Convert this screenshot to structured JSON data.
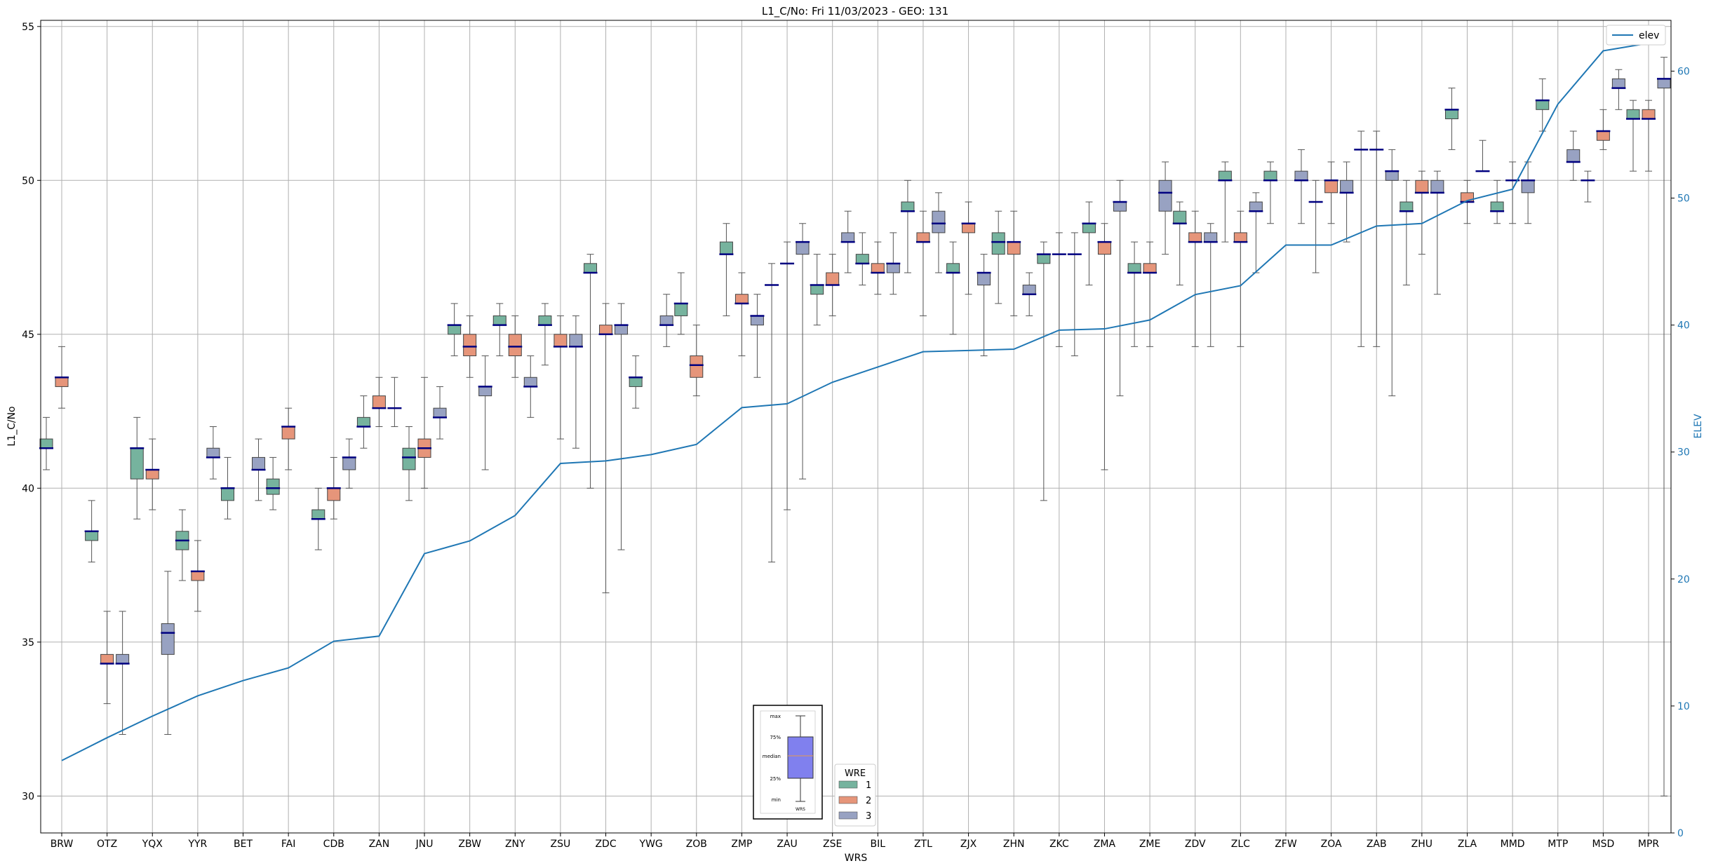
{
  "chart_data": {
    "type": "box",
    "title": "L1_C/No: Fri 11/03/2023 - GEO: 131",
    "xlabel": "WRS",
    "ylabel": "L1_C/No",
    "y2label": "ELEV",
    "ylim": [
      28.8,
      55.2
    ],
    "y2lim": [
      0,
      64
    ],
    "yticks": [
      30,
      35,
      40,
      45,
      50,
      55
    ],
    "y2ticks": [
      0,
      10,
      20,
      30,
      40,
      50,
      60
    ],
    "grid": true,
    "categories": [
      "BRW",
      "OTZ",
      "YQX",
      "YYR",
      "BET",
      "FAI",
      "CDB",
      "ZAN",
      "JNU",
      "ZBW",
      "ZNY",
      "ZSU",
      "ZDC",
      "YWG",
      "ZOB",
      "ZMP",
      "ZAU",
      "ZSE",
      "BIL",
      "ZTL",
      "ZJX",
      "ZHN",
      "ZKC",
      "ZMA",
      "ZME",
      "ZDV",
      "ZLC",
      "ZFW",
      "ZOA",
      "ZAB",
      "ZHU",
      "ZLA",
      "MMD",
      "MTP",
      "MSD",
      "MPR"
    ],
    "elev_series": {
      "name": "elev",
      "values": [
        5.7,
        7.5,
        9.2,
        10.8,
        12.0,
        13.0,
        15.1,
        15.5,
        22.0,
        23.0,
        25.0,
        29.1,
        29.3,
        29.8,
        30.6,
        33.5,
        33.8,
        35.5,
        36.7,
        37.9,
        38.0,
        38.1,
        39.6,
        39.7,
        40.4,
        42.4,
        43.1,
        46.3,
        46.3,
        47.8,
        48.0,
        49.8,
        50.7,
        57.4,
        61.6,
        62.2
      ]
    },
    "box_series": [
      {
        "name": "1",
        "color": "#76b39e",
        "boxes": [
          [
            0,
            40.6,
            41.3,
            41.3,
            41.6,
            42.3
          ],
          [
            1,
            37.6,
            38.3,
            38.6,
            38.6,
            39.6
          ],
          [
            2,
            39.0,
            40.3,
            41.3,
            41.3,
            42.3
          ],
          [
            3,
            37.0,
            38.0,
            38.3,
            38.6,
            39.3
          ],
          [
            4,
            39.0,
            39.6,
            40.0,
            40.0,
            41.0
          ],
          [
            5,
            39.3,
            39.8,
            40.0,
            40.3,
            41.0
          ],
          [
            6,
            38.0,
            39.0,
            39.0,
            39.3,
            40.0
          ],
          [
            7,
            41.3,
            42.0,
            42.0,
            42.3,
            43.0
          ],
          [
            8,
            39.6,
            40.6,
            41.0,
            41.3,
            42.0
          ],
          [
            9,
            44.3,
            45.0,
            45.3,
            45.3,
            46.0
          ],
          [
            10,
            44.3,
            45.3,
            45.3,
            45.6,
            46.0
          ],
          [
            11,
            44.0,
            45.3,
            45.3,
            45.6,
            46.0
          ],
          [
            12,
            40.0,
            47.0,
            47.0,
            47.3,
            47.6
          ],
          [
            13,
            42.6,
            43.3,
            43.6,
            43.6,
            44.3
          ],
          [
            14,
            45.0,
            45.6,
            46.0,
            46.0,
            47.0
          ],
          [
            15,
            45.6,
            47.6,
            47.6,
            48.0,
            48.6
          ],
          [
            16,
            37.6,
            46.6,
            46.6,
            46.6,
            47.3
          ],
          [
            17,
            45.3,
            46.3,
            46.6,
            46.6,
            47.6
          ],
          [
            18,
            46.6,
            47.3,
            47.3,
            47.6,
            48.3
          ],
          [
            19,
            47.0,
            49.0,
            49.0,
            49.3,
            50.0
          ],
          [
            20,
            45.0,
            47.0,
            47.0,
            47.3,
            48.0
          ],
          [
            21,
            46.0,
            47.6,
            48.0,
            48.3,
            49.0
          ],
          [
            22,
            39.6,
            47.3,
            47.6,
            47.6,
            48.0
          ],
          [
            23,
            46.6,
            48.3,
            48.6,
            48.6,
            49.3
          ],
          [
            24,
            44.6,
            47.0,
            47.0,
            47.3,
            48.0
          ],
          [
            25,
            46.6,
            48.6,
            48.6,
            49.0,
            49.3
          ],
          [
            26,
            48.0,
            50.0,
            50.0,
            50.3,
            50.6
          ],
          [
            27,
            48.6,
            50.0,
            50.0,
            50.3,
            50.6
          ],
          [
            28,
            47.0,
            49.3,
            49.3,
            49.3,
            50.0
          ],
          [
            29,
            44.6,
            51.0,
            51.0,
            51.0,
            51.6
          ],
          [
            30,
            46.6,
            49.0,
            49.0,
            49.3,
            50.0
          ],
          [
            31,
            51.0,
            52.0,
            52.3,
            52.3,
            53.0
          ],
          [
            32,
            48.6,
            49.0,
            49.0,
            49.3,
            50.0
          ],
          [
            33,
            51.6,
            52.3,
            52.6,
            52.6,
            53.3
          ],
          [
            34,
            49.3,
            50.0,
            50.0,
            50.0,
            50.3
          ],
          [
            35,
            50.3,
            52.0,
            52.0,
            52.3,
            52.6
          ]
        ]
      },
      {
        "name": "2",
        "color": "#e6957a",
        "boxes": [
          [
            0,
            42.6,
            43.3,
            43.6,
            43.6,
            44.6
          ],
          [
            1,
            33.0,
            34.3,
            34.3,
            34.6,
            36.0
          ],
          [
            2,
            39.3,
            40.3,
            40.6,
            40.6,
            41.6
          ],
          [
            3,
            36.0,
            37.0,
            37.3,
            37.3,
            38.3
          ],
          [
            4,
            null,
            null,
            null,
            null,
            null
          ],
          [
            5,
            40.6,
            41.6,
            42.0,
            42.0,
            42.6
          ],
          [
            6,
            39.0,
            39.6,
            40.0,
            40.0,
            41.0
          ],
          [
            7,
            42.0,
            42.6,
            42.6,
            43.0,
            43.6
          ],
          [
            8,
            40.0,
            41.0,
            41.3,
            41.6,
            43.6
          ],
          [
            9,
            43.6,
            44.3,
            44.6,
            45.0,
            45.6
          ],
          [
            10,
            43.6,
            44.3,
            44.6,
            45.0,
            45.6
          ],
          [
            11,
            41.6,
            44.6,
            44.6,
            45.0,
            45.6
          ],
          [
            12,
            36.6,
            45.0,
            45.0,
            45.3,
            46.0
          ],
          [
            13,
            null,
            null,
            null,
            null,
            null
          ],
          [
            14,
            43.0,
            43.6,
            44.0,
            44.3,
            45.3
          ],
          [
            15,
            44.3,
            46.0,
            46.0,
            46.3,
            47.0
          ],
          [
            16,
            39.3,
            47.3,
            47.3,
            47.3,
            48.0
          ],
          [
            17,
            45.6,
            46.6,
            46.6,
            47.0,
            47.6
          ],
          [
            18,
            46.3,
            47.0,
            47.0,
            47.3,
            48.0
          ],
          [
            19,
            45.6,
            48.0,
            48.0,
            48.3,
            49.0
          ],
          [
            20,
            46.3,
            48.3,
            48.6,
            48.6,
            49.3
          ],
          [
            21,
            45.6,
            47.6,
            48.0,
            48.0,
            49.0
          ],
          [
            22,
            44.6,
            47.6,
            47.6,
            47.6,
            48.3
          ],
          [
            23,
            40.6,
            47.6,
            48.0,
            48.0,
            48.6
          ],
          [
            24,
            44.6,
            47.0,
            47.0,
            47.3,
            48.0
          ],
          [
            25,
            44.6,
            48.0,
            48.0,
            48.3,
            49.0
          ],
          [
            26,
            44.6,
            48.0,
            48.0,
            48.3,
            49.0
          ],
          [
            27,
            null,
            null,
            null,
            null,
            null
          ],
          [
            28,
            48.6,
            49.6,
            50.0,
            50.0,
            50.6
          ],
          [
            29,
            44.6,
            51.0,
            51.0,
            51.0,
            51.6
          ],
          [
            30,
            47.6,
            49.6,
            49.6,
            50.0,
            50.3
          ],
          [
            31,
            48.6,
            49.3,
            49.3,
            49.6,
            50.0
          ],
          [
            32,
            48.6,
            50.0,
            50.0,
            50.0,
            50.6
          ],
          [
            33,
            null,
            null,
            null,
            null,
            null
          ],
          [
            34,
            51.0,
            51.3,
            51.6,
            51.6,
            52.3
          ],
          [
            35,
            50.3,
            52.0,
            52.0,
            52.3,
            52.6
          ]
        ]
      },
      {
        "name": "3",
        "color": "#98a2c2",
        "boxes": [
          [
            0,
            null,
            null,
            null,
            null,
            null
          ],
          [
            1,
            32.0,
            34.3,
            34.3,
            34.6,
            36.0
          ],
          [
            2,
            32.0,
            34.6,
            35.3,
            35.6,
            37.3
          ],
          [
            3,
            40.3,
            41.0,
            41.0,
            41.3,
            42.0
          ],
          [
            4,
            39.6,
            40.6,
            40.6,
            41.0,
            41.6
          ],
          [
            5,
            null,
            null,
            null,
            null,
            null
          ],
          [
            6,
            40.0,
            40.6,
            41.0,
            41.0,
            41.6
          ],
          [
            7,
            42.0,
            42.6,
            42.6,
            42.6,
            43.6
          ],
          [
            8,
            41.6,
            42.3,
            42.3,
            42.6,
            43.3
          ],
          [
            9,
            40.6,
            43.0,
            43.3,
            43.3,
            44.3
          ],
          [
            10,
            42.3,
            43.3,
            43.3,
            43.6,
            44.3
          ],
          [
            11,
            41.3,
            44.6,
            44.6,
            45.0,
            45.6
          ],
          [
            12,
            38.0,
            45.0,
            45.3,
            45.3,
            46.0
          ],
          [
            13,
            44.6,
            45.3,
            45.3,
            45.6,
            46.3
          ],
          [
            14,
            null,
            null,
            null,
            null,
            null
          ],
          [
            15,
            43.6,
            45.3,
            45.6,
            45.6,
            46.3
          ],
          [
            16,
            40.3,
            47.6,
            48.0,
            48.0,
            48.6
          ],
          [
            17,
            47.0,
            48.0,
            48.0,
            48.3,
            49.0
          ],
          [
            18,
            46.3,
            47.0,
            47.3,
            47.3,
            48.3
          ],
          [
            19,
            47.0,
            48.3,
            48.6,
            49.0,
            49.6
          ],
          [
            20,
            44.3,
            46.6,
            47.0,
            47.0,
            47.6
          ],
          [
            21,
            45.6,
            46.3,
            46.3,
            46.6,
            47.0
          ],
          [
            22,
            44.3,
            47.6,
            47.6,
            47.6,
            48.3
          ],
          [
            23,
            43.0,
            49.0,
            49.3,
            49.3,
            50.0
          ],
          [
            24,
            47.6,
            49.0,
            49.6,
            50.0,
            50.6
          ],
          [
            25,
            44.6,
            48.0,
            48.0,
            48.3,
            48.6
          ],
          [
            26,
            47.0,
            49.0,
            49.0,
            49.3,
            49.6
          ],
          [
            27,
            48.6,
            50.0,
            50.0,
            50.3,
            51.0
          ],
          [
            28,
            48.0,
            49.6,
            49.6,
            50.0,
            50.6
          ],
          [
            29,
            43.0,
            50.0,
            50.3,
            50.3,
            51.0
          ],
          [
            30,
            46.3,
            49.6,
            49.6,
            50.0,
            50.3
          ],
          [
            31,
            null,
            null,
            50.3,
            null,
            51.3
          ],
          [
            32,
            48.6,
            49.6,
            50.0,
            50.0,
            50.6
          ],
          [
            33,
            50.0,
            50.6,
            50.6,
            51.0,
            51.6
          ],
          [
            34,
            52.3,
            53.0,
            53.0,
            53.3,
            53.6
          ],
          [
            35,
            30.0,
            53.0,
            53.3,
            53.3,
            54.0
          ]
        ]
      }
    ],
    "legend_elev": {
      "label": "elev",
      "position": "upper right"
    },
    "legend_wre": {
      "title": "WRE",
      "labels": [
        "1",
        "2",
        "3"
      ],
      "position": "lower center"
    },
    "inset_key": {
      "labels": [
        "max",
        "75%",
        "median",
        "25%",
        "min"
      ],
      "xlabel": "WRS"
    }
  }
}
